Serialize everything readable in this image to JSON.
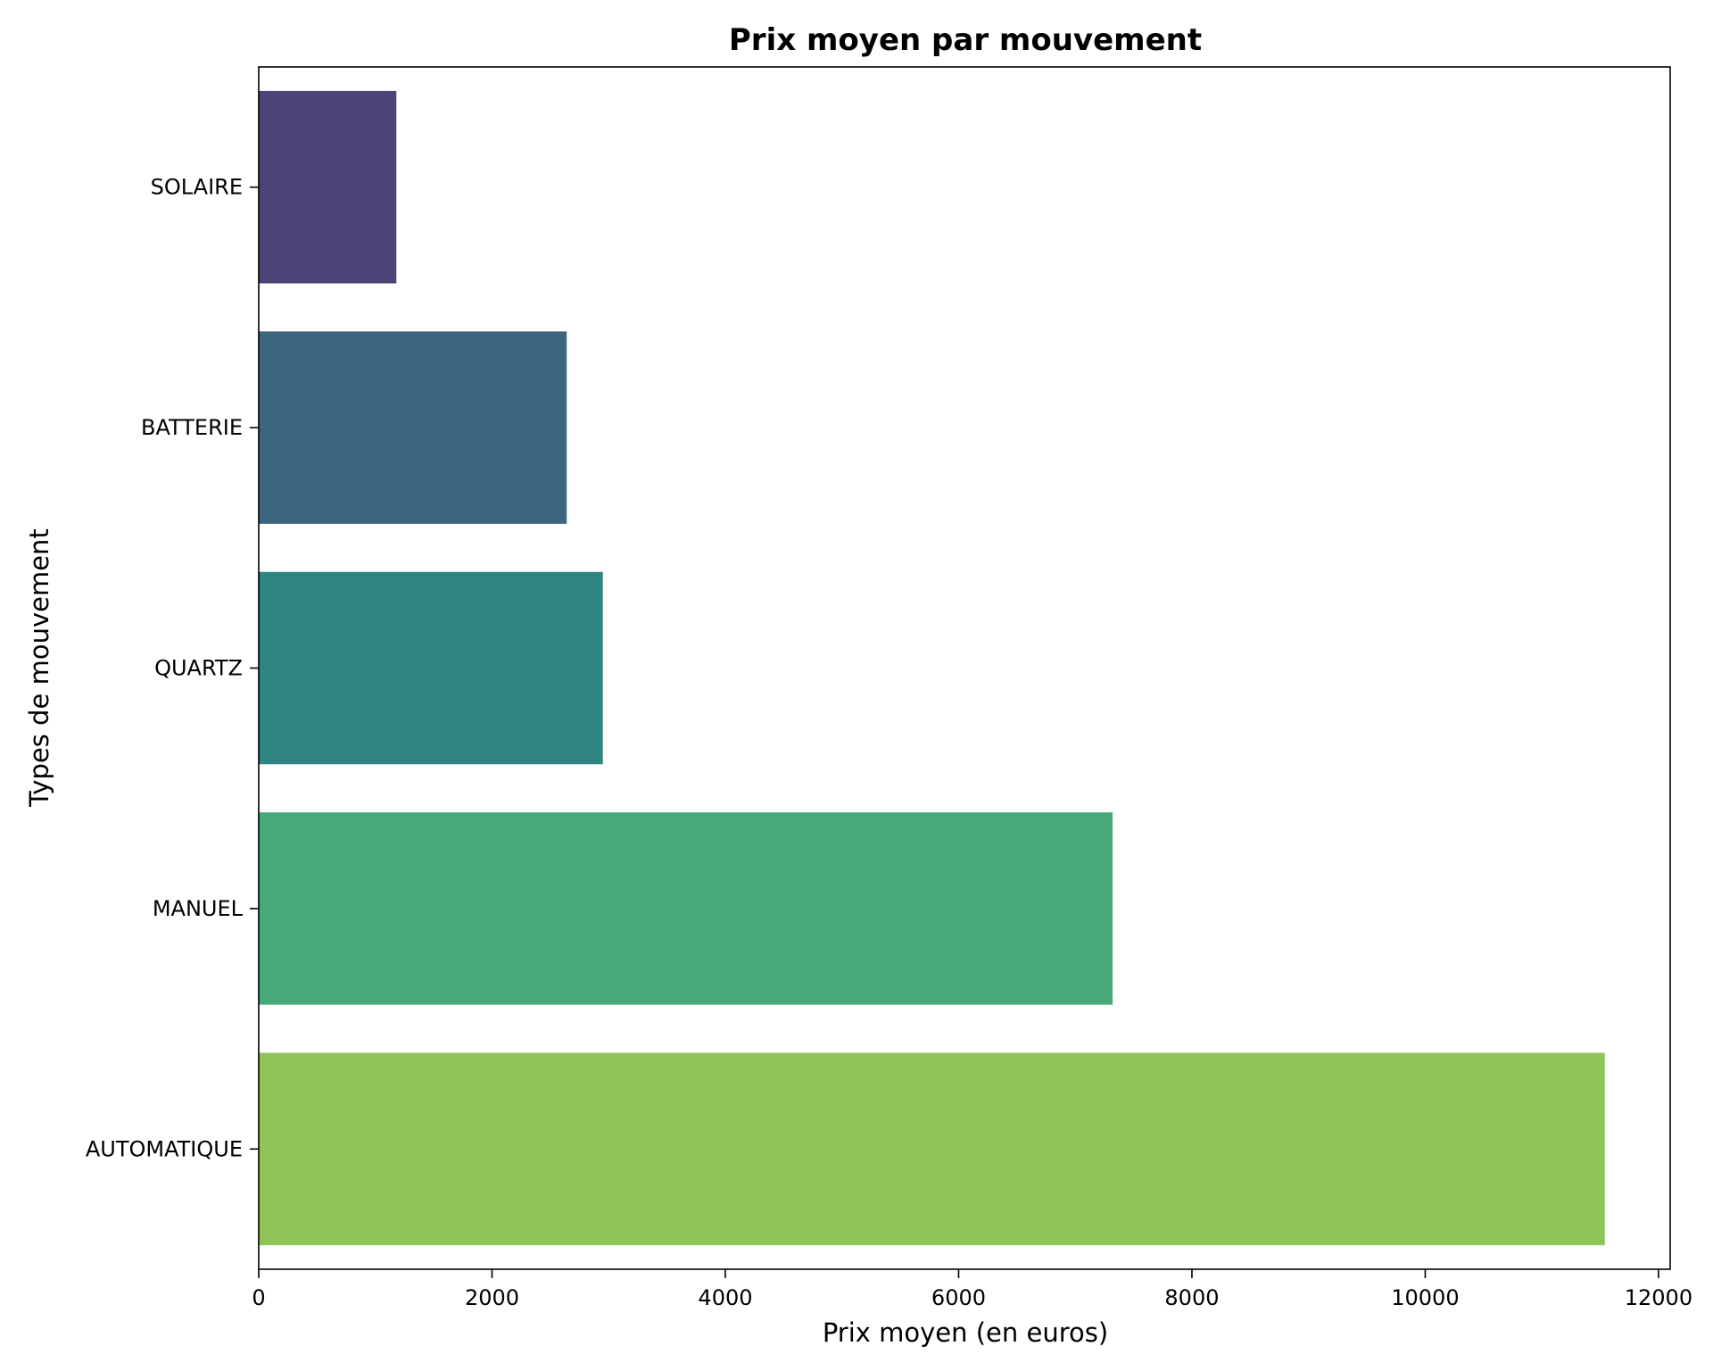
{
  "chart_data": {
    "type": "bar",
    "orientation": "horizontal",
    "title": "Prix moyen par mouvement",
    "xlabel": "Prix moyen (en euros)",
    "ylabel": "Types de mouvement",
    "categories": [
      "SOLAIRE",
      "BATTERIE",
      "QUARTZ",
      "MANUEL",
      "AUTOMATIQUE"
    ],
    "values": [
      1180,
      2640,
      2950,
      7320,
      11540
    ],
    "colors": [
      "#4b4477",
      "#3e6580",
      "#2e847f",
      "#47a878",
      "#8fc558"
    ],
    "xlim": [
      0,
      12100
    ],
    "xticks": [
      0,
      2000,
      4000,
      6000,
      8000,
      10000,
      12000
    ],
    "grid": false
  }
}
